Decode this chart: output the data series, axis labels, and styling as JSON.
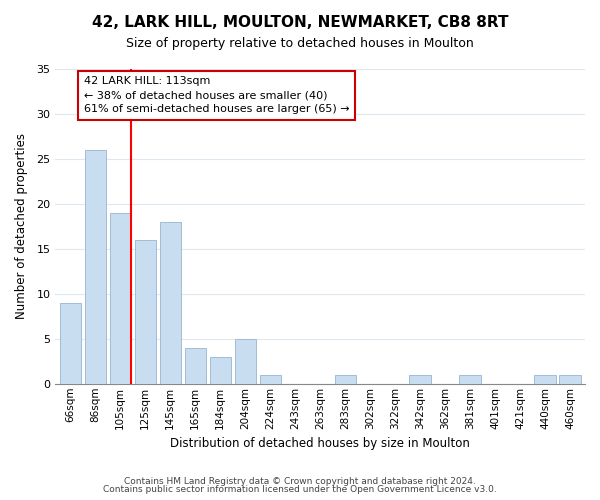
{
  "title": "42, LARK HILL, MOULTON, NEWMARKET, CB8 8RT",
  "subtitle": "Size of property relative to detached houses in Moulton",
  "xlabel": "Distribution of detached houses by size in Moulton",
  "ylabel": "Number of detached properties",
  "bar_labels": [
    "66sqm",
    "86sqm",
    "105sqm",
    "125sqm",
    "145sqm",
    "165sqm",
    "184sqm",
    "204sqm",
    "224sqm",
    "243sqm",
    "263sqm",
    "283sqm",
    "302sqm",
    "322sqm",
    "342sqm",
    "362sqm",
    "381sqm",
    "401sqm",
    "421sqm",
    "440sqm",
    "460sqm"
  ],
  "bar_values": [
    9,
    26,
    19,
    16,
    18,
    4,
    3,
    5,
    1,
    0,
    0,
    1,
    0,
    0,
    1,
    0,
    1,
    0,
    0,
    1,
    1
  ],
  "bar_color": "#c8ddf0",
  "bar_edge_color": "#a0bcd8",
  "vline_color": "#ff0000",
  "annotation_text": "42 LARK HILL: 113sqm\n← 38% of detached houses are smaller (40)\n61% of semi-detached houses are larger (65) →",
  "annotation_box_color": "#ffffff",
  "annotation_box_edge": "#cc0000",
  "ylim": [
    0,
    35
  ],
  "yticks": [
    0,
    5,
    10,
    15,
    20,
    25,
    30,
    35
  ],
  "footer1": "Contains HM Land Registry data © Crown copyright and database right 2024.",
  "footer2": "Contains public sector information licensed under the Open Government Licence v3.0.",
  "background_color": "#ffffff",
  "grid_color": "#dde8f0"
}
